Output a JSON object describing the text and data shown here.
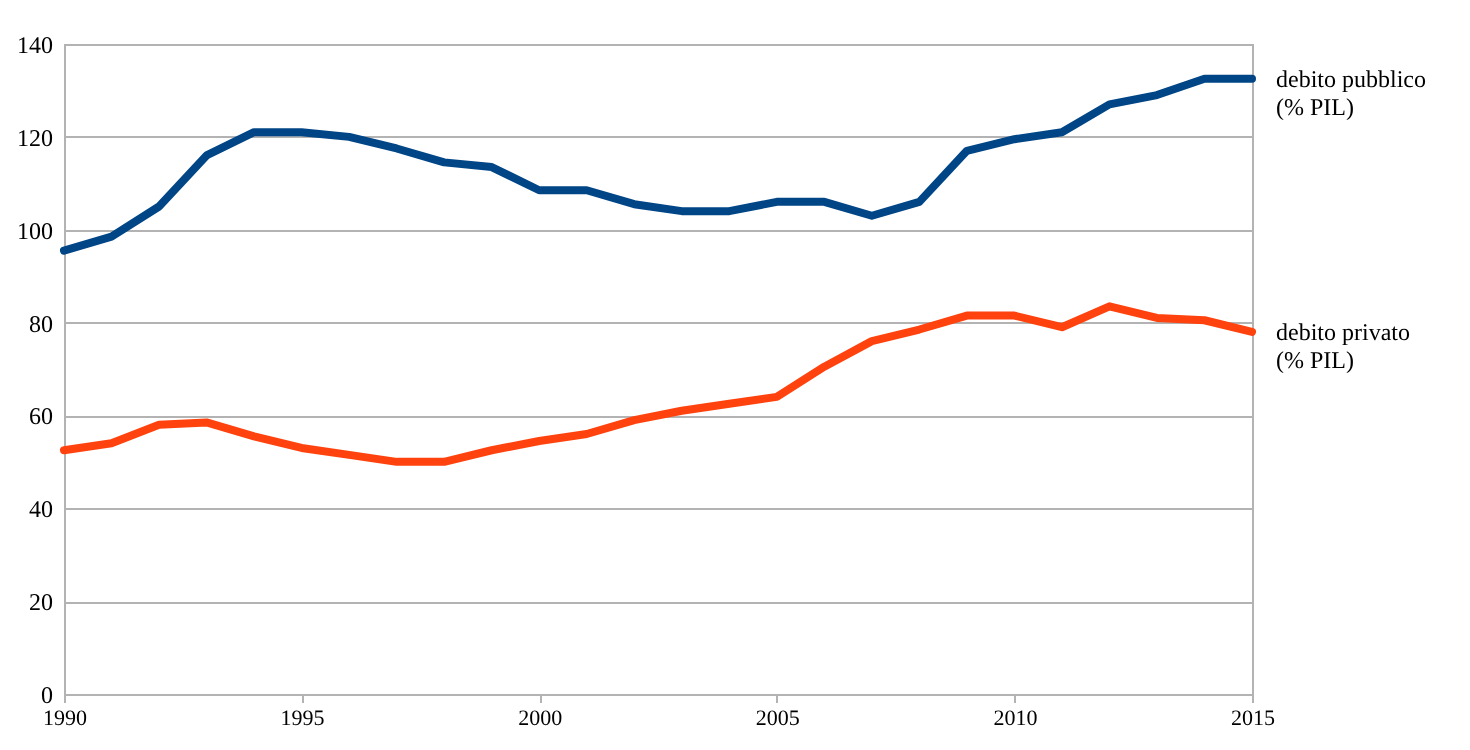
{
  "chart_data": {
    "type": "line",
    "x": [
      1990,
      1991,
      1992,
      1993,
      1994,
      1995,
      1996,
      1997,
      1998,
      1999,
      2000,
      2001,
      2002,
      2003,
      2004,
      2005,
      2006,
      2007,
      2008,
      2009,
      2010,
      2011,
      2012,
      2013,
      2014,
      2015
    ],
    "series": [
      {
        "name": "debito pubblico\n(% PIL)",
        "color": "#004586",
        "values": [
          95.5,
          98.5,
          105,
          116,
          121,
          121,
          120,
          117.5,
          114.5,
          113.5,
          108.5,
          108.5,
          105.5,
          104,
          104,
          106,
          106,
          103,
          106,
          117,
          119.5,
          121,
          127,
          129,
          132.5,
          132.5
        ]
      },
      {
        "name": "debito privato\n(% PIL)",
        "color": "#ff420e",
        "values": [
          52.5,
          54,
          58,
          58.5,
          55.5,
          53,
          51.5,
          50,
          50,
          52.5,
          54.5,
          56,
          59,
          61,
          62.5,
          64,
          70.5,
          76,
          78.5,
          81.5,
          81.5,
          79,
          83.5,
          81,
          80.5,
          78
        ]
      }
    ],
    "xlim": [
      1990,
      2015
    ],
    "xticks": [
      1990,
      1995,
      2000,
      2005,
      2010,
      2015
    ],
    "ylim": [
      0,
      140
    ],
    "yticks": [
      0,
      20,
      40,
      60,
      80,
      100,
      120,
      140
    ],
    "grid": "y",
    "legend": false,
    "marker": "none",
    "line_style": "solid"
  }
}
